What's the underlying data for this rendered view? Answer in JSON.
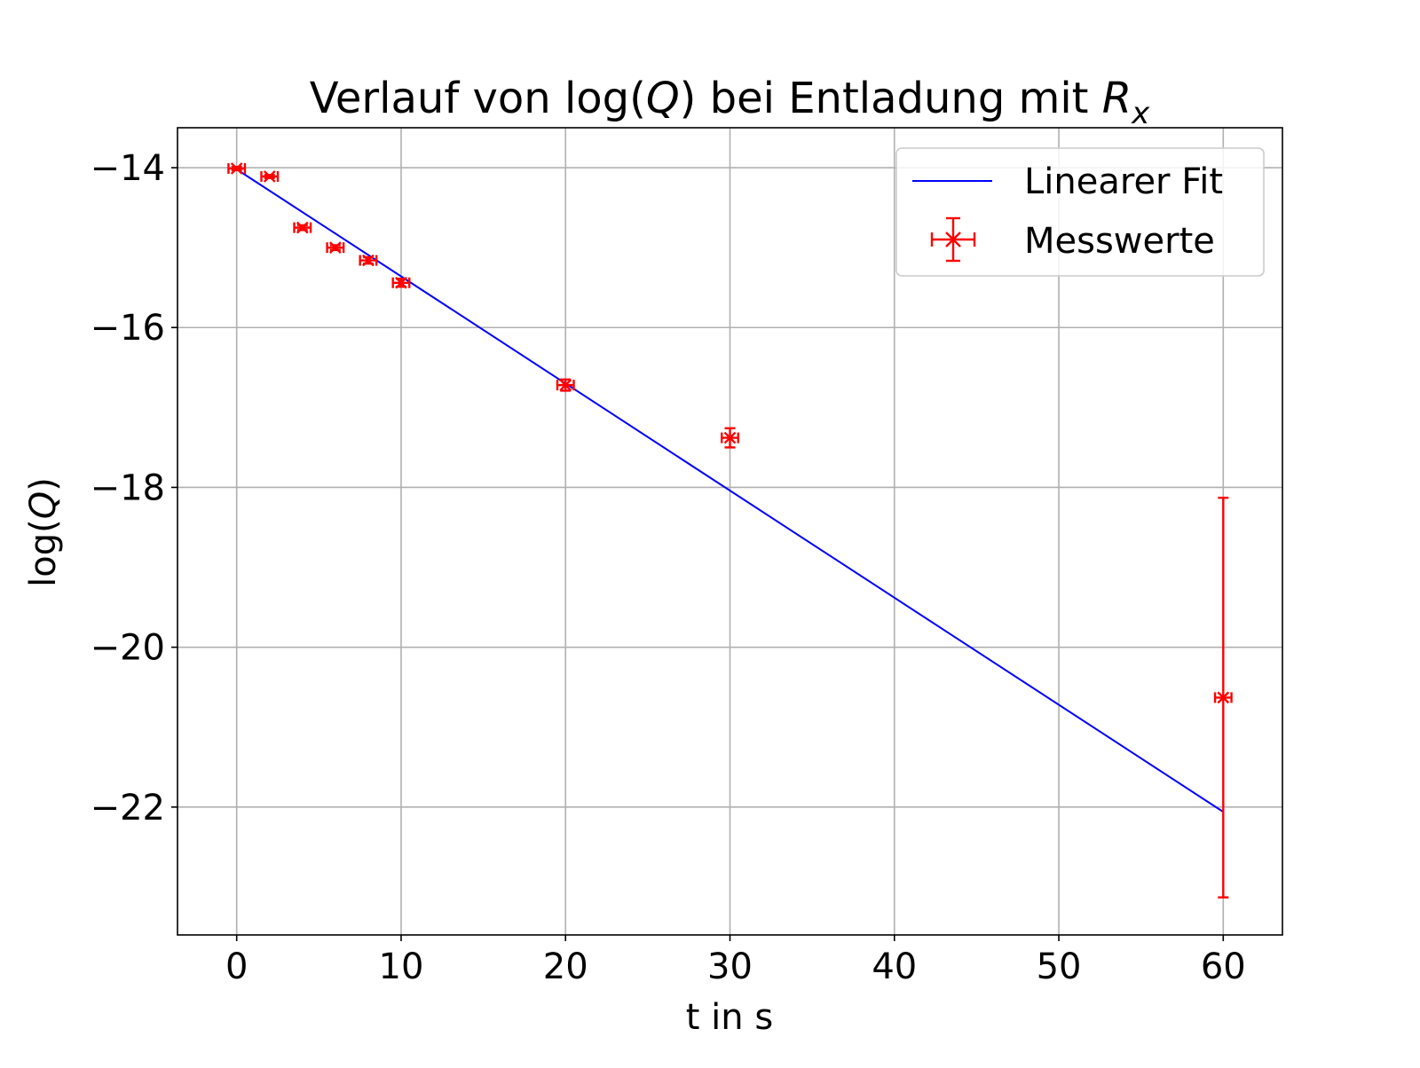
{
  "chart_data": {
    "type": "scatter",
    "title": "Verlauf von log(Q) bei Entladung mit R_x",
    "title_parts": {
      "prefix": "Verlauf von log(",
      "q": "Q",
      "middle": ") bei Entladung mit ",
      "r": "R",
      "sub": "x"
    },
    "xlabel": "t in s",
    "ylabel": "log(Q)",
    "ylabel_parts": {
      "prefix": "log(",
      "q": "Q",
      "suffix": ")"
    },
    "xlim": [
      -3.6,
      63.6
    ],
    "ylim": [
      -23.6,
      -13.5
    ],
    "x_ticks": [
      0,
      10,
      20,
      30,
      40,
      50,
      60
    ],
    "x_tick_labels": [
      "0",
      "10",
      "20",
      "30",
      "40",
      "50",
      "60"
    ],
    "y_ticks": [
      -14,
      -16,
      -18,
      -20,
      -22
    ],
    "y_tick_labels": [
      "−14",
      "−16",
      "−18",
      "−20",
      "−22"
    ],
    "grid": true,
    "legend_position": "top-right",
    "series": [
      {
        "name": "Linearer Fit",
        "kind": "line",
        "color": "#0000ff",
        "x": [
          0,
          60
        ],
        "y": [
          -14.02,
          -22.06
        ]
      },
      {
        "name": "Messwerte",
        "kind": "errorbar",
        "color": "#ff0000",
        "x": [
          0,
          2,
          4,
          6,
          8,
          10,
          20,
          30,
          60
        ],
        "y": [
          -14.01,
          -14.11,
          -14.75,
          -15.0,
          -15.16,
          -15.44,
          -16.72,
          -17.38,
          -20.63
        ],
        "xerr": [
          0.5,
          0.5,
          0.5,
          0.5,
          0.5,
          0.5,
          0.5,
          0.5,
          0.5
        ],
        "yerr": [
          0.02,
          0.02,
          0.03,
          0.03,
          0.04,
          0.05,
          0.07,
          0.12,
          2.5
        ]
      }
    ]
  }
}
